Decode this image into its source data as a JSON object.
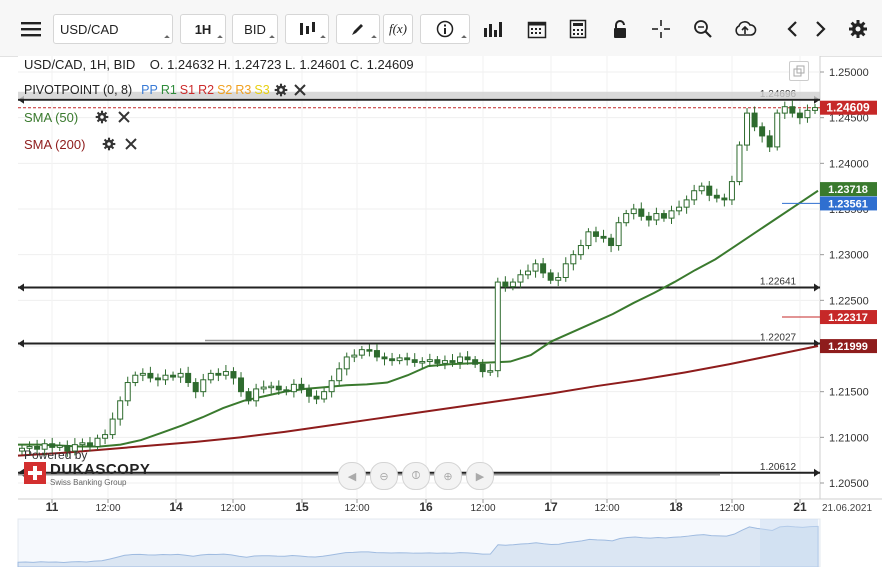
{
  "toolbar": {
    "symbol": "USD/CAD",
    "timeframe": "1H",
    "price_side": "BID",
    "icons": [
      "menu-icon",
      "candlestick-icon",
      "pencil-icon",
      "function-icon",
      "info-icon",
      "bar-chart-icon",
      "calendar-icon",
      "calculator-icon",
      "lock-icon",
      "crosshair-icon",
      "zoom-icon",
      "cloud-upload-icon",
      "arrow-left-icon",
      "arrow-right-icon",
      "gear-icon"
    ]
  },
  "header": {
    "instrument": "USD/CAD, 1H, BID",
    "open_label": "O.",
    "open": "1.24632",
    "high_label": "H.",
    "high": "1.24723",
    "low_label": "L.",
    "low": "1.24601",
    "close_label": "C.",
    "close": "1.24609"
  },
  "indicators": {
    "pivot": {
      "name": "PIVOTPOINT (0, 8)",
      "pp": "PP",
      "r1": "R1",
      "s1": "S1",
      "r2": "R2",
      "s2": "S2",
      "r3": "R3",
      "s3": "S3",
      "pp_color": "#3a7bd5",
      "r1_color": "#2e8b3a",
      "s1_color": "#cc2b2b",
      "r2_color": "#cc2b2b",
      "s2_color": "#f0a020",
      "r3_color": "#f0a020",
      "s3_color": "#e8d010"
    },
    "sma50": {
      "name": "SMA (50)",
      "color": "#3a7a2e"
    },
    "sma200": {
      "name": "SMA (200)",
      "color": "#8e1c1c"
    }
  },
  "watermark": {
    "powered_by": "Powered by",
    "brand": "DUKASCOPY",
    "tagline": "Swiss Banking Group"
  },
  "chart_data": {
    "type": "candlestick",
    "ylim": [
      1.2035,
      1.2525
    ],
    "y_ticks": [
      "1.25000",
      "1.24500",
      "1.24000",
      "1.23500",
      "1.23000",
      "1.22500",
      "1.22000",
      "1.21500",
      "1.21000",
      "1.20500"
    ],
    "x_ticks": [
      "11",
      "12:00",
      "14",
      "12:00",
      "15",
      "12:00",
      "16",
      "12:00",
      "17",
      "12:00",
      "18",
      "12:00",
      "21"
    ],
    "date_label": "21.06.2021",
    "price_labels": [
      {
        "text": "1.24609",
        "bg": "#c62828"
      },
      {
        "text": "1.23718",
        "bg": "#3a7a2e"
      },
      {
        "text": "1.23561",
        "bg": "#2f6fd0"
      },
      {
        "text": "1.22317",
        "bg": "#c62828"
      },
      {
        "text": "1.21999",
        "bg": "#8e1c1c"
      }
    ],
    "levels": [
      {
        "name": "R3",
        "value": 1.24696,
        "label": "1.24696"
      },
      {
        "name": "R1",
        "value": 1.22641,
        "label": "1.22641"
      },
      {
        "name": "PP",
        "value": 1.22027,
        "label": "1.22027"
      },
      {
        "name": "S1",
        "value": 1.20612,
        "label": "1.20612"
      }
    ],
    "close_series": [
      1.2088,
      1.209,
      1.2087,
      1.2093,
      1.2089,
      1.2091,
      1.2085,
      1.2092,
      1.2094,
      1.209,
      1.2099,
      1.2103,
      1.212,
      1.214,
      1.216,
      1.2168,
      1.217,
      1.2165,
      1.2163,
      1.2168,
      1.2166,
      1.217,
      1.216,
      1.215,
      1.2163,
      1.217,
      1.2168,
      1.2172,
      1.2165,
      1.215,
      1.214,
      1.2153,
      1.2155,
      1.2156,
      1.2152,
      1.215,
      1.2158,
      1.2153,
      1.2145,
      1.2142,
      1.215,
      1.2162,
      1.2175,
      1.2188,
      1.219,
      1.2196,
      1.2195,
      1.2188,
      1.2186,
      1.2184,
      1.2187,
      1.2185,
      1.2182,
      1.2183,
      1.2185,
      1.2181,
      1.2184,
      1.2182,
      1.2188,
      1.2185,
      1.218,
      1.2172,
      1.2173,
      1.227,
      1.2265,
      1.227,
      1.2278,
      1.2282,
      1.229,
      1.228,
      1.2272,
      1.2275,
      1.229,
      1.23,
      1.231,
      1.2325,
      1.232,
      1.2318,
      1.231,
      1.2335,
      1.2345,
      1.235,
      1.2342,
      1.2338,
      1.2345,
      1.234,
      1.2348,
      1.2352,
      1.236,
      1.237,
      1.2375,
      1.2365,
      1.2362,
      1.236,
      1.238,
      1.242,
      1.2455,
      1.244,
      1.243,
      1.2418,
      1.2455,
      1.2462,
      1.2455,
      1.245,
      1.2458,
      1.2461
    ],
    "sma50_series": [
      1.2092,
      1.2092,
      1.2091,
      1.209,
      1.209,
      1.2092,
      1.2097,
      1.2105,
      1.2113,
      1.2122,
      1.2132,
      1.214,
      1.2145,
      1.215,
      1.2153,
      1.2155,
      1.2157,
      1.2158,
      1.216,
      1.2168,
      1.2178,
      1.218,
      1.2181,
      1.2182,
      1.2183,
      1.219,
      1.2205,
      1.2215,
      1.2225,
      1.2235,
      1.2247,
      1.2258,
      1.227,
      1.2283,
      1.2295,
      1.231,
      1.2325,
      1.234,
      1.2355,
      1.237
    ],
    "sma200_series": [
      1.208,
      1.2083,
      1.2087,
      1.2091,
      1.2095,
      1.21,
      1.2106,
      1.2113,
      1.212,
      1.2127,
      1.2134,
      1.2141,
      1.2148,
      1.2156,
      1.2163,
      1.2171,
      1.218,
      1.219,
      1.22
    ],
    "volume_label": ""
  }
}
